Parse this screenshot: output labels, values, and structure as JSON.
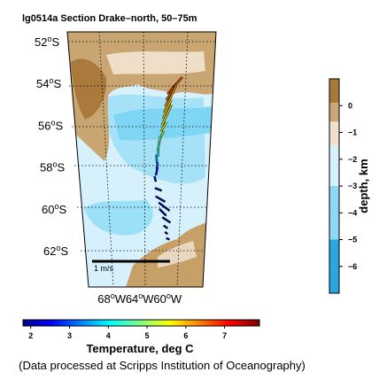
{
  "chart_data": {
    "type": "map",
    "title": "lg0514a Section Drake–north, 50–75m",
    "lat_labels": [
      {
        "deg": "52",
        "hemi": "S",
        "value": -52
      },
      {
        "deg": "54",
        "hemi": "S",
        "value": -54
      },
      {
        "deg": "56",
        "hemi": "S",
        "value": -56
      },
      {
        "deg": "58",
        "hemi": "S",
        "value": -58
      },
      {
        "deg": "60",
        "hemi": "S",
        "value": -60
      },
      {
        "deg": "62",
        "hemi": "S",
        "value": -62
      }
    ],
    "lon_labels": [
      {
        "deg": "68",
        "hemi": "W",
        "value": -68
      },
      {
        "deg": "64",
        "hemi": "W",
        "value": -64
      },
      {
        "deg": "60",
        "hemi": "W",
        "value": -60
      }
    ],
    "depth_colorbar": {
      "label": "depth, km",
      "ticks": [
        "0",
        "−1",
        "−2",
        "−3",
        "−4",
        "−5",
        "−6"
      ],
      "range": [
        -7,
        1
      ],
      "colors": [
        "#2aa7df",
        "#8fd8f5",
        "#d7f1fb",
        "#f0e0cc",
        "#c9a77a",
        "#a9793a"
      ]
    },
    "temperature_colorbar": {
      "label": "Temperature, deg C",
      "ticks": [
        "2",
        "3",
        "4",
        "5",
        "6",
        "7"
      ],
      "range": [
        1.8,
        7.9
      ],
      "colormap": "jet"
    },
    "scale_label": "1 m/s",
    "vectors": [
      {
        "lon": -61.3,
        "lat": -54.5,
        "u": 0.55,
        "v": 0.62,
        "temp": 6.6
      },
      {
        "lon": -61.4,
        "lat": -54.8,
        "u": 0.45,
        "v": 0.7,
        "temp": 6.4
      },
      {
        "lon": -61.5,
        "lat": -55.1,
        "u": 0.4,
        "v": 0.75,
        "temp": 6.2
      },
      {
        "lon": -61.6,
        "lat": -55.4,
        "u": 0.35,
        "v": 0.8,
        "temp": 6.0
      },
      {
        "lon": -61.7,
        "lat": -55.7,
        "u": 0.3,
        "v": 0.7,
        "temp": 5.8
      },
      {
        "lon": -61.8,
        "lat": -56.0,
        "u": 0.35,
        "v": 0.75,
        "temp": 5.7
      },
      {
        "lon": -61.9,
        "lat": -56.3,
        "u": 0.2,
        "v": 0.35,
        "temp": 5.5
      },
      {
        "lon": -62.0,
        "lat": -56.6,
        "u": 0.15,
        "v": 0.25,
        "temp": 5.3
      },
      {
        "lon": -62.1,
        "lat": -56.9,
        "u": 0.05,
        "v": 0.3,
        "temp": 5.0
      },
      {
        "lon": -62.2,
        "lat": -57.2,
        "u": 0.05,
        "v": 0.35,
        "temp": 4.6
      },
      {
        "lon": -62.2,
        "lat": -57.5,
        "u": 0.02,
        "v": 0.28,
        "temp": 4.2
      },
      {
        "lon": -62.3,
        "lat": -57.8,
        "u": -0.02,
        "v": 0.3,
        "temp": 3.6
      },
      {
        "lon": -62.3,
        "lat": -58.1,
        "u": 0.03,
        "v": 0.25,
        "temp": 3.0
      },
      {
        "lon": -62.4,
        "lat": -58.4,
        "u": 0.06,
        "v": 0.3,
        "temp": 2.6
      },
      {
        "lon": -62.4,
        "lat": -58.7,
        "u": -0.05,
        "v": 0.2,
        "temp": 2.3
      },
      {
        "lon": -62.5,
        "lat": -59.0,
        "u": 0.25,
        "v": -0.1,
        "temp": 2.0
      },
      {
        "lon": -62.4,
        "lat": -59.4,
        "u": 0.35,
        "v": -0.2,
        "temp": 1.9
      },
      {
        "lon": -62.0,
        "lat": -59.7,
        "u": 0.4,
        "v": -0.3,
        "temp": 1.9
      },
      {
        "lon": -61.9,
        "lat": -60.0,
        "u": 0.25,
        "v": -0.25,
        "temp": 1.9
      },
      {
        "lon": -61.5,
        "lat": -60.4,
        "u": 0.3,
        "v": -0.2,
        "temp": 1.9
      },
      {
        "lon": -61.3,
        "lat": -60.8,
        "u": 0.15,
        "v": -0.1,
        "temp": 1.9
      },
      {
        "lon": -61.1,
        "lat": -61.1,
        "u": 0.1,
        "v": -0.08,
        "temp": 1.9
      },
      {
        "lon": -60.9,
        "lat": -61.4,
        "u": 0.12,
        "v": -0.05,
        "temp": 1.9
      }
    ]
  },
  "text": {
    "credit": "(Data processed at Scripps Institution of Oceanography)"
  }
}
